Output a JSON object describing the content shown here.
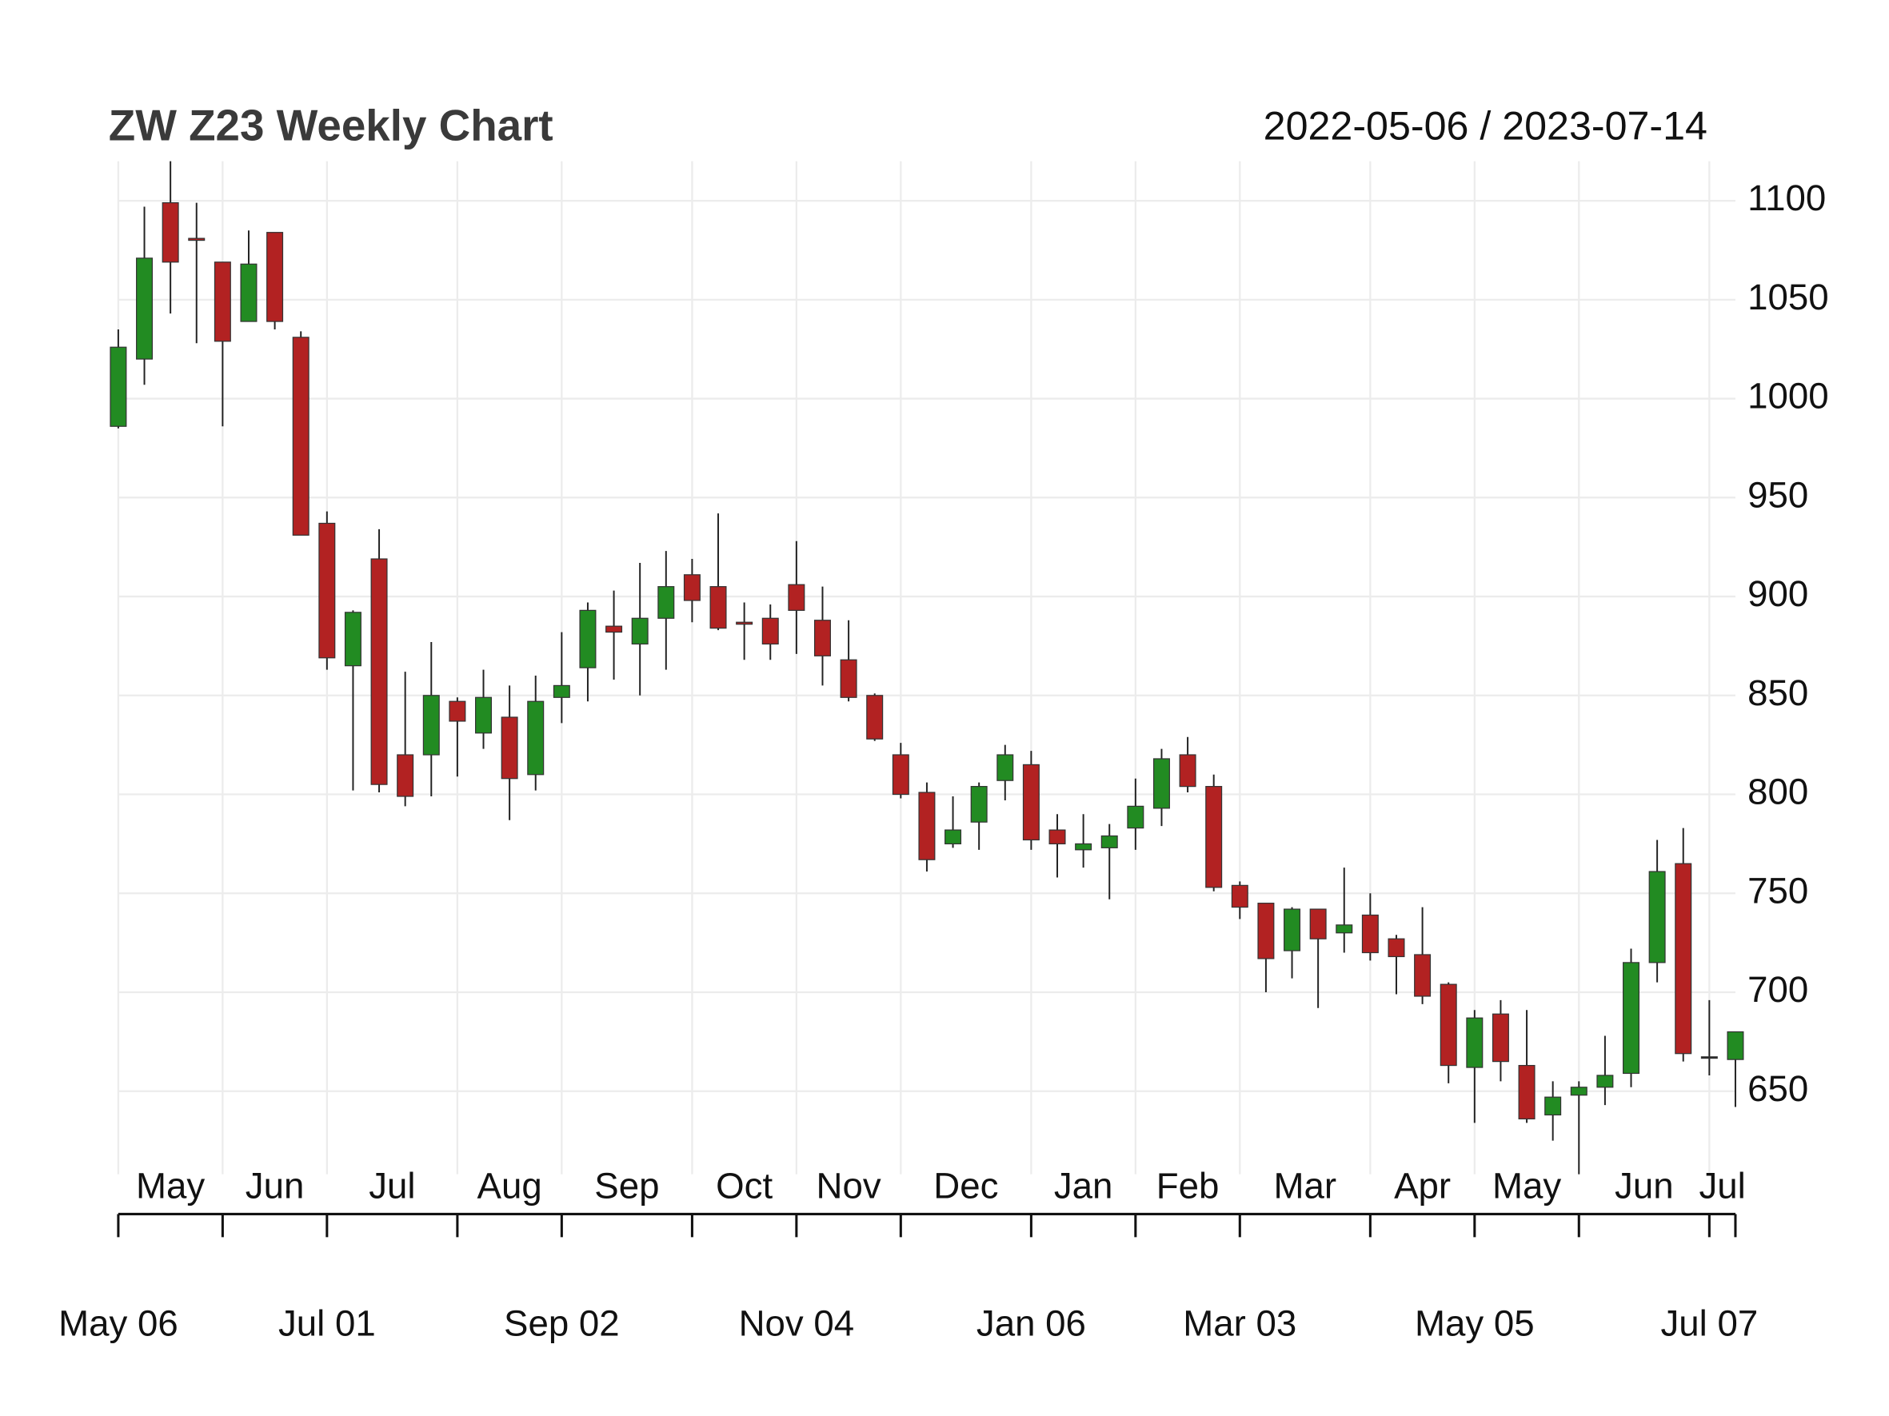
{
  "chart_data": {
    "type": "candlestick",
    "title": "ZW Z23 Weekly Chart",
    "subtitle": "2022-05-06 / 2023-07-14",
    "x": [
      "2022-05-06",
      "2022-05-13",
      "2022-05-20",
      "2022-05-27",
      "2022-06-03",
      "2022-06-10",
      "2022-06-17",
      "2022-06-24",
      "2022-07-01",
      "2022-07-08",
      "2022-07-15",
      "2022-07-22",
      "2022-07-29",
      "2022-08-05",
      "2022-08-12",
      "2022-08-19",
      "2022-08-26",
      "2022-09-02",
      "2022-09-09",
      "2022-09-16",
      "2022-09-23",
      "2022-09-30",
      "2022-10-07",
      "2022-10-14",
      "2022-10-21",
      "2022-10-28",
      "2022-11-04",
      "2022-11-11",
      "2022-11-18",
      "2022-11-25",
      "2022-12-02",
      "2022-12-09",
      "2022-12-16",
      "2022-12-23",
      "2022-12-30",
      "2023-01-06",
      "2023-01-13",
      "2023-01-20",
      "2023-01-27",
      "2023-02-03",
      "2023-02-10",
      "2023-02-17",
      "2023-02-24",
      "2023-03-03",
      "2023-03-10",
      "2023-03-17",
      "2023-03-24",
      "2023-03-31",
      "2023-04-07",
      "2023-04-14",
      "2023-04-21",
      "2023-04-28",
      "2023-05-05",
      "2023-05-12",
      "2023-05-19",
      "2023-05-26",
      "2023-06-02",
      "2023-06-09",
      "2023-06-16",
      "2023-06-23",
      "2023-06-30",
      "2023-07-07",
      "2023-07-14"
    ],
    "open": [
      986,
      1020,
      1099,
      1081,
      1069,
      1039,
      1084,
      1031,
      937,
      865,
      919,
      820,
      820,
      847,
      831,
      839,
      810,
      849,
      864,
      885,
      876,
      889,
      911,
      905,
      887,
      889,
      906,
      888,
      868,
      850,
      820,
      801,
      775,
      786,
      807,
      815,
      782,
      772,
      773,
      783,
      793,
      820,
      804,
      754,
      745,
      721,
      742,
      730,
      739,
      727,
      719,
      704,
      662,
      689,
      663,
      638,
      648,
      652,
      659,
      715,
      765,
      667,
      666
    ],
    "high": [
      1035,
      1097,
      1120,
      1099,
      1069,
      1085,
      1084,
      1034,
      943,
      893,
      934,
      862,
      877,
      849,
      863,
      855,
      860,
      882,
      897,
      903,
      917,
      923,
      919,
      942,
      897,
      896,
      928,
      905,
      888,
      851,
      826,
      806,
      799,
      806,
      825,
      822,
      790,
      790,
      785,
      808,
      823,
      829,
      810,
      756,
      745,
      743,
      742,
      763,
      750,
      729,
      743,
      705,
      691,
      696,
      691,
      655,
      655,
      678,
      722,
      777,
      783,
      696,
      680
    ],
    "low": [
      985,
      1007,
      1043,
      1028,
      986,
      1039,
      1035,
      931,
      863,
      802,
      801,
      794,
      799,
      809,
      823,
      787,
      802,
      836,
      847,
      858,
      850,
      863,
      887,
      883,
      868,
      868,
      871,
      855,
      847,
      827,
      798,
      761,
      773,
      772,
      797,
      772,
      758,
      763,
      747,
      772,
      784,
      801,
      751,
      737,
      700,
      707,
      692,
      720,
      716,
      699,
      694,
      654,
      634,
      655,
      634,
      625,
      608,
      643,
      652,
      705,
      665,
      658,
      642
    ],
    "close": [
      1026,
      1071,
      1069,
      1080,
      1029,
      1068,
      1039,
      931,
      869,
      892,
      805,
      799,
      850,
      837,
      849,
      808,
      847,
      855,
      893,
      882,
      889,
      905,
      898,
      884,
      886,
      876,
      893,
      870,
      849,
      828,
      800,
      767,
      782,
      804,
      820,
      777,
      775,
      775,
      779,
      794,
      818,
      804,
      753,
      743,
      717,
      742,
      727,
      734,
      720,
      718,
      698,
      663,
      687,
      665,
      636,
      647,
      652,
      658,
      715,
      761,
      669,
      667,
      680
    ],
    "up_color": "#228b22",
    "down_color": "#b22222",
    "ylim": [
      608,
      1120
    ],
    "yticks": [
      650,
      700,
      750,
      800,
      850,
      900,
      950,
      1000,
      1050,
      1100
    ],
    "grid": true,
    "month_ticks": [
      {
        "value": "2022-05-06",
        "label": "May"
      },
      {
        "value": "2022-06-03",
        "label": "Jun"
      },
      {
        "value": "2022-07-01",
        "label": "Jul"
      },
      {
        "value": "2022-08-05",
        "label": "Aug"
      },
      {
        "value": "2022-09-02",
        "label": "Sep"
      },
      {
        "value": "2022-10-07",
        "label": "Oct"
      },
      {
        "value": "2022-11-04",
        "label": "Nov"
      },
      {
        "value": "2022-12-02",
        "label": "Dec"
      },
      {
        "value": "2023-01-06",
        "label": "Jan"
      },
      {
        "value": "2023-02-03",
        "label": "Feb"
      },
      {
        "value": "2023-03-03",
        "label": "Mar"
      },
      {
        "value": "2023-04-07",
        "label": "Apr"
      },
      {
        "value": "2023-05-05",
        "label": "May"
      },
      {
        "value": "2023-06-02",
        "label": "Jun"
      },
      {
        "value": "2023-07-07",
        "label": "Jul"
      }
    ],
    "xticks": [
      {
        "value": "2022-05-06",
        "label": "May 06"
      },
      {
        "value": "2022-07-01",
        "label": "Jul 01"
      },
      {
        "value": "2022-09-02",
        "label": "Sep 02"
      },
      {
        "value": "2022-11-04",
        "label": "Nov 04"
      },
      {
        "value": "2023-01-06",
        "label": "Jan 06"
      },
      {
        "value": "2023-03-03",
        "label": "Mar 03"
      },
      {
        "value": "2023-05-05",
        "label": "May 05"
      },
      {
        "value": "2023-07-07",
        "label": "Jul 07"
      }
    ]
  }
}
